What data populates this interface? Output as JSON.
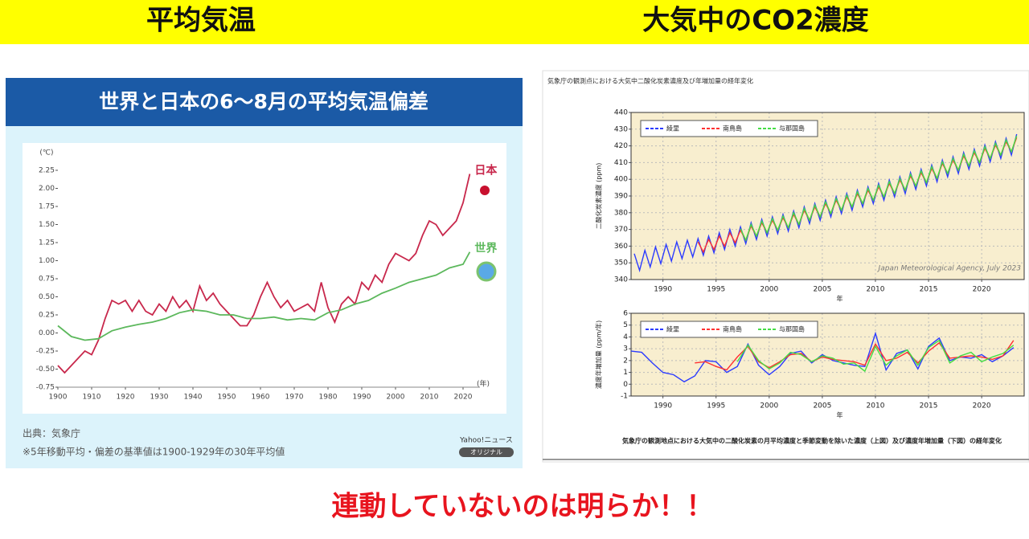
{
  "page": {
    "header_left": "平均気温",
    "header_right": "大気中のCO2濃度",
    "footer": "連動していないのは明らか！！",
    "source": "出典：気象庁",
    "note": "※5年移動平均・偏差の基準値は1900-1929年の30年平均値",
    "brand": "Yahoo!ニュース",
    "badge": "オリジナル",
    "caption": "気象庁の観測地点における大気中の二酸化炭素の月平均濃度と季節変動を除いた濃度（上図）及び濃度年増加量（下図）の経年変化"
  },
  "chart_data": [
    {
      "type": "line",
      "title": "世界と日本の6～8月の平均気温偏差",
      "y_label": "(℃)",
      "x_label": "(年)",
      "legend": "line-end",
      "grid": false,
      "xlim": [
        1900,
        2025
      ],
      "xticks": [
        1900,
        1910,
        1920,
        1930,
        1940,
        1950,
        1960,
        1970,
        1980,
        1990,
        2000,
        2010,
        2020
      ],
      "ylim": [
        -0.75,
        2.25
      ],
      "yticks": [
        -0.75,
        {
          "value": -0.5,
          "label": "-0.50"
        },
        -0.25,
        {
          "value": 0,
          "label": "0.00"
        },
        0.25,
        {
          "value": 0.5,
          "label": "0.50"
        },
        0.75,
        {
          "value": 1,
          "label": "1.00"
        },
        1.25,
        {
          "value": 1.5,
          "label": "1.50"
        },
        1.75,
        {
          "value": 2,
          "label": "2.00"
        },
        2.25
      ],
      "series": [
        {
          "name": "日本",
          "color": "#c8284c",
          "x": [
            1900,
            1902,
            1904,
            1906,
            1908,
            1910,
            1912,
            1914,
            1916,
            1918,
            1920,
            1922,
            1924,
            1926,
            1928,
            1930,
            1932,
            1934,
            1936,
            1938,
            1940,
            1942,
            1944,
            1946,
            1948,
            1950,
            1952,
            1954,
            1956,
            1958,
            1960,
            1962,
            1964,
            1966,
            1968,
            1970,
            1972,
            1974,
            1976,
            1978,
            1980,
            1982,
            1984,
            1986,
            1988,
            1990,
            1992,
            1994,
            1996,
            1998,
            2000,
            2002,
            2004,
            2006,
            2008,
            2010,
            2012,
            2014,
            2016,
            2018,
            2020,
            2022
          ],
          "values": [
            -0.45,
            -0.55,
            -0.45,
            -0.35,
            -0.25,
            -0.3,
            -0.1,
            0.2,
            0.45,
            0.4,
            0.45,
            0.3,
            0.45,
            0.3,
            0.25,
            0.4,
            0.3,
            0.5,
            0.35,
            0.45,
            0.3,
            0.65,
            0.45,
            0.55,
            0.4,
            0.3,
            0.2,
            0.1,
            0.1,
            0.25,
            0.5,
            0.7,
            0.5,
            0.35,
            0.45,
            0.3,
            0.35,
            0.4,
            0.3,
            0.7,
            0.35,
            0.15,
            0.4,
            0.5,
            0.4,
            0.7,
            0.6,
            0.8,
            0.7,
            0.95,
            1.1,
            1.05,
            1.0,
            1.1,
            1.35,
            1.55,
            1.5,
            1.35,
            1.45,
            1.55,
            1.8,
            2.2
          ]
        },
        {
          "name": "世界",
          "color": "#5cb85c",
          "x": [
            1900,
            1904,
            1908,
            1912,
            1916,
            1920,
            1924,
            1928,
            1932,
            1936,
            1940,
            1944,
            1948,
            1952,
            1956,
            1960,
            1964,
            1968,
            1972,
            1976,
            1980,
            1984,
            1988,
            1992,
            1996,
            2000,
            2004,
            2008,
            2012,
            2016,
            2020,
            2022
          ],
          "values": [
            0.1,
            -0.05,
            -0.1,
            -0.08,
            0.03,
            0.08,
            0.12,
            0.15,
            0.2,
            0.28,
            0.32,
            0.3,
            0.25,
            0.25,
            0.2,
            0.2,
            0.22,
            0.18,
            0.2,
            0.18,
            0.28,
            0.32,
            0.4,
            0.45,
            0.55,
            0.62,
            0.7,
            0.75,
            0.8,
            0.9,
            0.95,
            1.12
          ]
        }
      ]
    },
    {
      "type": "line",
      "title": "気象庁の観測点における大気中二酸化炭素濃度及び年増加量の経年変化",
      "y_label": "二酸化炭素濃度 (ppm)",
      "x_label": "年",
      "annotation": "Japan Meteorological Agency, July 2023",
      "legend": "upper left",
      "grid": true,
      "xlim": [
        1987,
        2024
      ],
      "xticks": [
        1990,
        1995,
        2000,
        2005,
        2010,
        2015,
        2020
      ],
      "ylim": [
        340,
        440
      ],
      "yticks": [
        340,
        350,
        360,
        370,
        380,
        390,
        400,
        410,
        420,
        430,
        440
      ],
      "series": [
        {
          "name": "綾里",
          "color": "#2b3bff",
          "x": [
            1987.3,
            1987.8,
            1988.3,
            1988.8,
            1989.3,
            1989.8,
            1990.3,
            1990.8,
            1991.3,
            1991.8,
            1992.3,
            1992.8,
            1993.3,
            1993.8,
            1994.3,
            1994.8,
            1995.3,
            1995.8,
            1996.3,
            1996.8,
            1997.3,
            1997.8,
            1998.3,
            1998.8,
            1999.3,
            1999.8,
            2000.3,
            2000.8,
            2001.3,
            2001.8,
            2002.3,
            2002.8,
            2003.3,
            2003.8,
            2004.3,
            2004.8,
            2005.3,
            2005.8,
            2006.3,
            2006.8,
            2007.3,
            2007.8,
            2008.3,
            2008.8,
            2009.3,
            2009.8,
            2010.3,
            2010.8,
            2011.3,
            2011.8,
            2012.3,
            2012.8,
            2013.3,
            2013.8,
            2014.3,
            2014.8,
            2015.3,
            2015.8,
            2016.3,
            2016.8,
            2017.3,
            2017.8,
            2018.3,
            2018.8,
            2019.3,
            2019.8,
            2020.3,
            2020.8,
            2021.3,
            2021.8,
            2022.3,
            2022.8,
            2023.3
          ],
          "values": [
            355.5,
            345.5,
            357.5,
            347.5,
            359.5,
            349.5,
            361,
            351,
            362.5,
            352.5,
            363.5,
            353.5,
            364.5,
            354.5,
            366,
            356,
            368,
            358,
            370,
            360,
            371.5,
            361.5,
            374,
            364,
            376,
            366,
            377.5,
            367.5,
            379,
            369,
            381,
            371,
            383.5,
            373.5,
            385.5,
            375.5,
            387.5,
            377.5,
            389.5,
            379.5,
            391.5,
            381.5,
            393.5,
            383.5,
            395.5,
            385.5,
            397.5,
            387.5,
            399.5,
            389.5,
            401.5,
            391.5,
            404,
            394,
            406,
            396,
            408.5,
            398.5,
            411.5,
            401.5,
            413.5,
            403.5,
            416,
            406,
            418,
            408,
            420.5,
            410.5,
            422.5,
            412.5,
            424.5,
            414.5,
            427
          ]
        },
        {
          "name": "南鳥島",
          "color": "#ff3030",
          "x": [
            1993.3,
            1993.8,
            1994.3,
            1994.8,
            1995.3,
            1995.8,
            1996.3,
            1996.8,
            1997.3,
            1997.8,
            1998.3,
            1998.8,
            1999.3,
            1999.8,
            2000.3,
            2000.8,
            2001.3,
            2001.8,
            2002.3,
            2002.8,
            2003.3,
            2003.8,
            2004.3,
            2004.8,
            2005.3,
            2005.8,
            2006.3,
            2006.8,
            2007.3,
            2007.8,
            2008.3,
            2008.8,
            2009.3,
            2009.8,
            2010.3,
            2010.8,
            2011.3,
            2011.8,
            2012.3,
            2012.8,
            2013.3,
            2013.8,
            2014.3,
            2014.8,
            2015.3,
            2015.8,
            2016.3,
            2016.8,
            2017.3,
            2017.8,
            2018.3,
            2018.8,
            2019.3,
            2019.8,
            2020.3,
            2020.8,
            2021.3,
            2021.8,
            2022.3,
            2022.8,
            2023.3
          ],
          "values": [
            362.5,
            356.5,
            364,
            358,
            366,
            360,
            368,
            362,
            369.5,
            363.5,
            372,
            366,
            374,
            368,
            375.5,
            369.5,
            377,
            371,
            379,
            373,
            381.5,
            375.5,
            383.5,
            377.5,
            385.5,
            379.5,
            387.5,
            381.5,
            389.5,
            383.5,
            391.5,
            385.5,
            393.5,
            387.5,
            395.5,
            389.5,
            397.5,
            391.5,
            399.5,
            393.5,
            402,
            396,
            404,
            398,
            406.5,
            400.5,
            409.5,
            403.5,
            411.5,
            405.5,
            414,
            408,
            416,
            410,
            418.5,
            412.5,
            420.5,
            414.5,
            422.5,
            416.5,
            425
          ]
        },
        {
          "name": "与那国島",
          "color": "#44dd44",
          "x": [
            1997.3,
            1997.8,
            1998.3,
            1998.8,
            1999.3,
            1999.8,
            2000.3,
            2000.8,
            2001.3,
            2001.8,
            2002.3,
            2002.8,
            2003.3,
            2003.8,
            2004.3,
            2004.8,
            2005.3,
            2005.8,
            2006.3,
            2006.8,
            2007.3,
            2007.8,
            2008.3,
            2008.8,
            2009.3,
            2009.8,
            2010.3,
            2010.8,
            2011.3,
            2011.8,
            2012.3,
            2012.8,
            2013.3,
            2013.8,
            2014.3,
            2014.8,
            2015.3,
            2015.8,
            2016.3,
            2016.8,
            2017.3,
            2017.8,
            2018.3,
            2018.8,
            2019.3,
            2019.8,
            2020.3,
            2020.8,
            2021.3,
            2021.8,
            2022.3,
            2022.8,
            2023.3
          ],
          "values": [
            370.5,
            363.5,
            373,
            366,
            375,
            368,
            376.5,
            369.5,
            378,
            371,
            380,
            373,
            382.5,
            375.5,
            384.5,
            377.5,
            386.5,
            379.5,
            388.5,
            381.5,
            390.5,
            383.5,
            392.5,
            385.5,
            394.5,
            387.5,
            396.5,
            389.5,
            398.5,
            391.5,
            400.5,
            393.5,
            403,
            396,
            405,
            398,
            407.5,
            400.5,
            410.5,
            403.5,
            412.5,
            405.5,
            415,
            408,
            417,
            410,
            419.5,
            412.5,
            421.5,
            414.5,
            423.5,
            416.5,
            426
          ]
        }
      ]
    },
    {
      "type": "line",
      "y_label": "濃度年増加量 (ppm/年)",
      "x_label": "年",
      "legend": "upper left",
      "grid": true,
      "xlim": [
        1987,
        2024
      ],
      "xticks": [
        1990,
        1995,
        2000,
        2005,
        2010,
        2015,
        2020
      ],
      "ylim": [
        -1,
        6
      ],
      "yticks": [
        -1,
        0,
        1,
        2,
        3,
        4,
        5,
        6
      ],
      "series": [
        {
          "name": "綾里",
          "color": "#2b3bff",
          "x": [
            1987,
            1988,
            1989,
            1990,
            1991,
            1992,
            1993,
            1994,
            1995,
            1996,
            1997,
            1998,
            1999,
            2000,
            2001,
            2002,
            2003,
            2004,
            2005,
            2006,
            2007,
            2008,
            2009,
            2010,
            2011,
            2012,
            2013,
            2014,
            2015,
            2016,
            2017,
            2018,
            2019,
            2020,
            2021,
            2022,
            2023
          ],
          "values": [
            2.8,
            2.7,
            1.8,
            1.0,
            0.8,
            0.2,
            0.7,
            2.0,
            1.9,
            1.0,
            1.5,
            3.4,
            1.6,
            0.8,
            1.5,
            2.6,
            2.8,
            1.8,
            2.5,
            2.0,
            1.8,
            1.6,
            1.5,
            4.3,
            1.2,
            2.6,
            2.9,
            1.3,
            3.2,
            3.9,
            2.0,
            2.3,
            2.2,
            2.5,
            1.9,
            2.4,
            3.1
          ]
        },
        {
          "name": "南鳥島",
          "color": "#ff3030",
          "x": [
            1993,
            1994,
            1995,
            1996,
            1997,
            1998,
            1999,
            2000,
            2001,
            2002,
            2003,
            2004,
            2005,
            2006,
            2007,
            2008,
            2009,
            2010,
            2011,
            2012,
            2013,
            2014,
            2015,
            2016,
            2017,
            2018,
            2019,
            2020,
            2021,
            2022,
            2023
          ],
          "values": [
            1.8,
            1.9,
            1.5,
            1.2,
            2.3,
            3.2,
            1.9,
            1.4,
            1.9,
            2.5,
            2.6,
            1.9,
            2.3,
            2.1,
            2.0,
            1.9,
            1.6,
            3.4,
            2.0,
            2.2,
            2.7,
            1.8,
            2.8,
            3.5,
            2.2,
            2.3,
            2.4,
            2.3,
            2.1,
            2.4,
            3.7
          ]
        },
        {
          "name": "与那国島",
          "color": "#44dd44",
          "x": [
            1997,
            1998,
            1999,
            2000,
            2001,
            2002,
            2003,
            2004,
            2005,
            2006,
            2007,
            2008,
            2009,
            2010,
            2011,
            2012,
            2013,
            2014,
            2015,
            2016,
            2017,
            2018,
            2019,
            2020,
            2021,
            2022,
            2023
          ],
          "values": [
            1.9,
            3.3,
            2.0,
            1.3,
            1.8,
            2.7,
            2.5,
            1.9,
            2.4,
            2.2,
            1.7,
            1.8,
            1.1,
            3.2,
            1.6,
            2.4,
            2.9,
            1.6,
            3.1,
            3.7,
            1.8,
            2.4,
            2.7,
            1.9,
            2.3,
            2.6,
            3.3
          ]
        }
      ]
    }
  ]
}
